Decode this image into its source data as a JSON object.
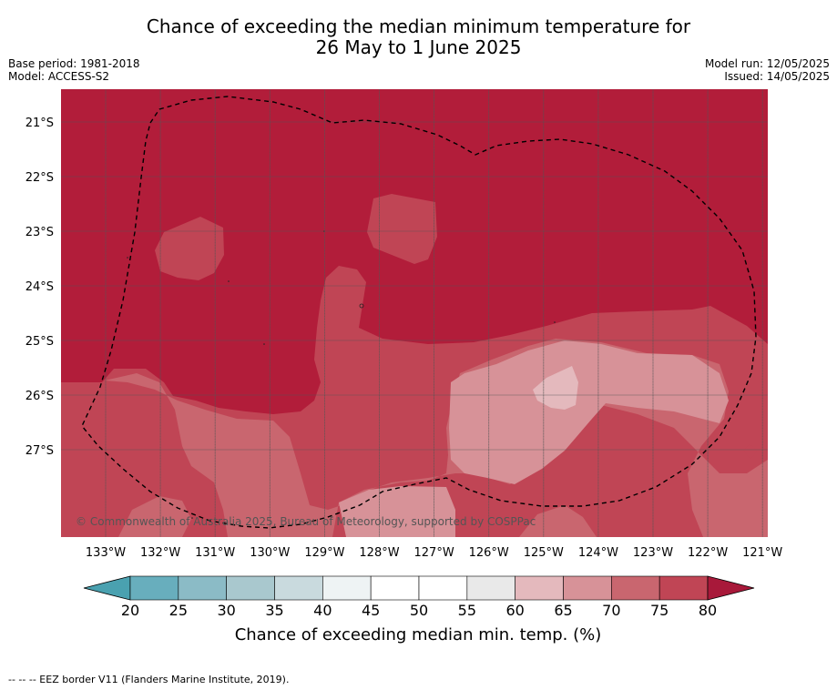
{
  "header": {
    "title_line1": "Chance of exceeding the median minimum temperature for",
    "title_line2": "26 May to 1 June 2025",
    "base_period": "Base period: 1981-2018",
    "model": "Model: ACCESS-S2",
    "model_run": "Model run: 12/05/2025",
    "issued": "Issued: 14/05/2025"
  },
  "map": {
    "lat_labels": [
      "21°S",
      "22°S",
      "23°S",
      "24°S",
      "25°S",
      "26°S",
      "27°S"
    ],
    "lon_labels": [
      "133°W",
      "132°W",
      "131°W",
      "130°W",
      "129°W",
      "128°W",
      "127°W",
      "126°W",
      "125°W",
      "124°W",
      "123°W",
      "122°W",
      "121°W"
    ],
    "copyright": "© Commonwealth of Australia 2025, Bureau of Meteorology, supported by COSPPac",
    "colors": {
      "above_80": "#b21d3a",
      "75_80": "#c04555",
      "70_75": "#c9666f",
      "65_70": "#d79298",
      "60_65": "#e4b9bd"
    }
  },
  "colorbar": {
    "ticks": [
      "20",
      "25",
      "30",
      "35",
      "40",
      "45",
      "50",
      "55",
      "60",
      "65",
      "70",
      "75",
      "80"
    ],
    "label": "Chance of exceeding median min. temp. (%)",
    "colors": [
      "#68aebd",
      "#8bbbc6",
      "#a9c8ce",
      "#c9dade",
      "#eef3f4",
      "#ffffff",
      "#ffffff",
      "#e9e9e9",
      "#e4b9bd",
      "#d79298",
      "#c9666f",
      "#c04555"
    ],
    "under_color": "#4aa1b0",
    "over_color": "#a8193a"
  },
  "footnote": "--  --  -- EEZ border V11 (Flanders Marine Institute, 2019)."
}
